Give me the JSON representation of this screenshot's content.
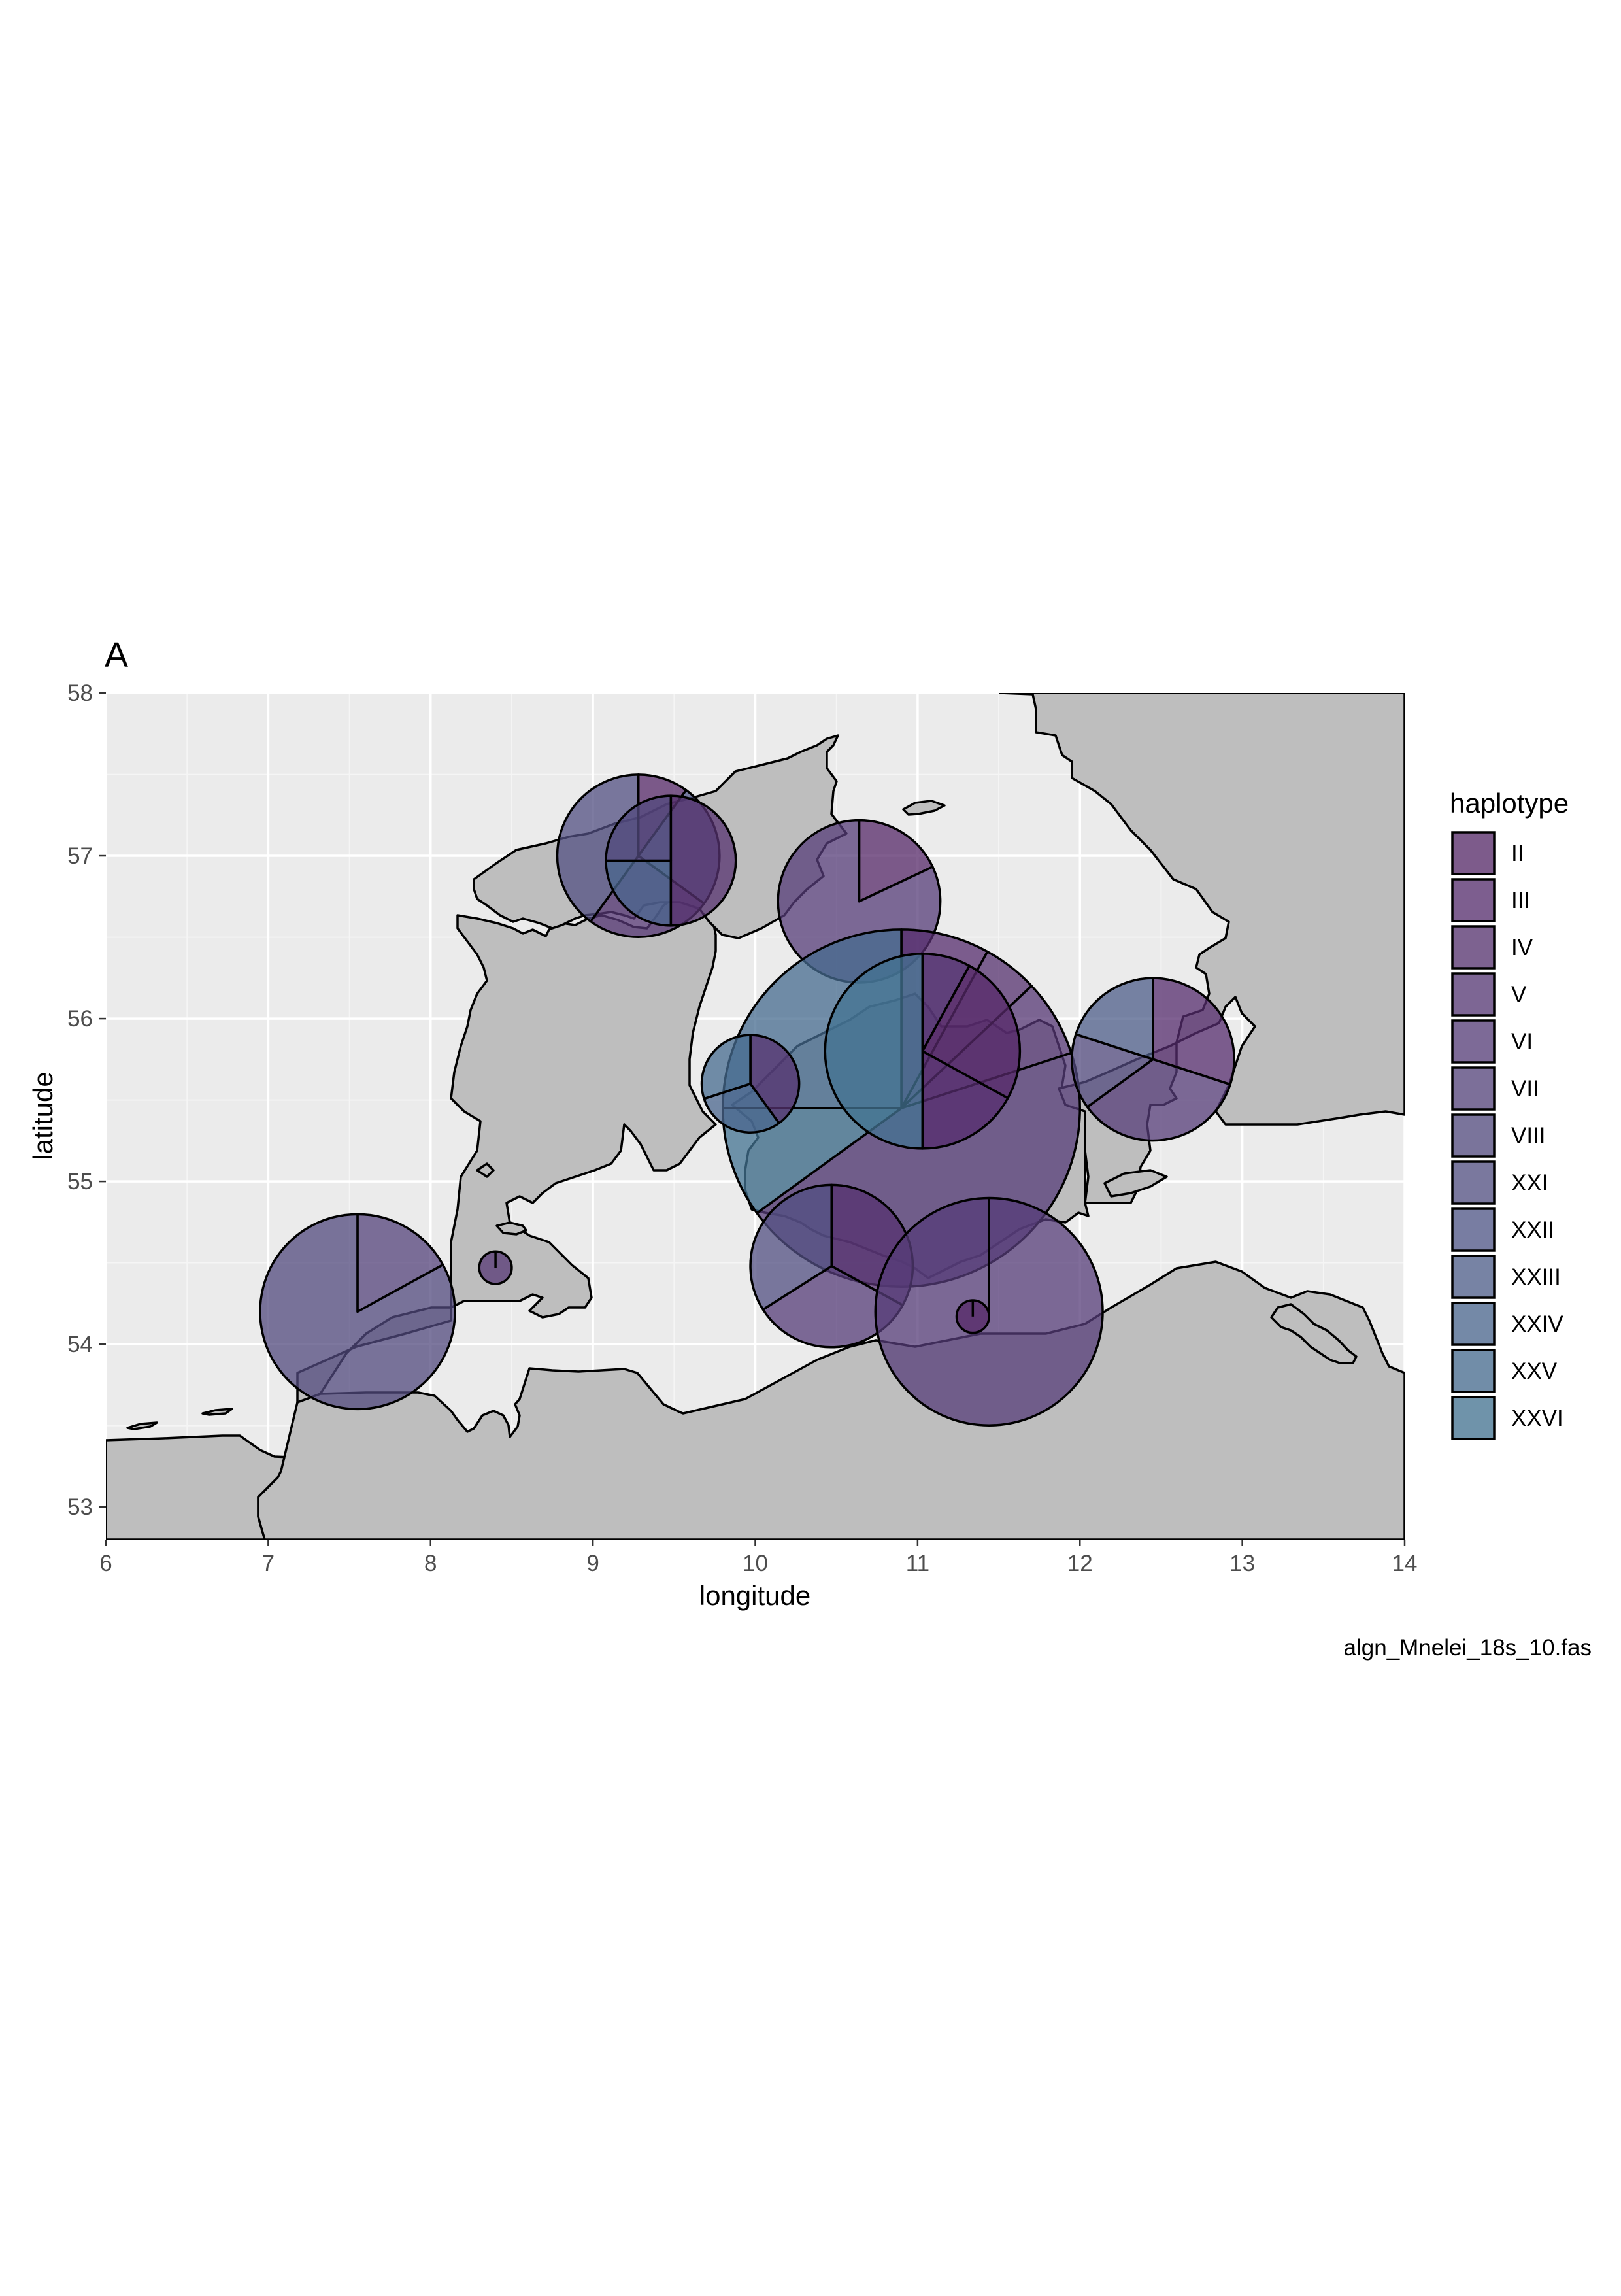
{
  "figure": {
    "panel_tag": "A",
    "caption": "algn_Mnelei_18s_10.fas"
  },
  "chart_data": {
    "type": "map-pie",
    "xlabel": "longitude",
    "ylabel": "latitude",
    "xlim": [
      6,
      14
    ],
    "ylim": [
      52.8,
      58
    ],
    "x_ticks": [
      "6",
      "7",
      "8",
      "9",
      "10",
      "11",
      "12",
      "13",
      "14"
    ],
    "y_ticks": [
      "53",
      "54",
      "55",
      "56",
      "57",
      "58"
    ],
    "grid": true,
    "background": "#ebebeb",
    "land_color": "#bebebe",
    "legend": {
      "title": "haplotype",
      "placement": "right",
      "items": [
        {
          "label": "II",
          "color": "#562868"
        },
        {
          "label": "III",
          "color": "#552c6d"
        },
        {
          "label": "IV",
          "color": "#55316f"
        },
        {
          "label": "V",
          "color": "#553774"
        },
        {
          "label": "VI",
          "color": "#553c78"
        },
        {
          "label": "VII",
          "color": "#54437b"
        },
        {
          "label": "VIII",
          "color": "#52497e"
        },
        {
          "label": "XXI",
          "color": "#514f82"
        },
        {
          "label": "XXII",
          "color": "#4f5687"
        },
        {
          "label": "XXIII",
          "color": "#4d5d89"
        },
        {
          "label": "XXIV",
          "color": "#49658d"
        },
        {
          "label": "XXV",
          "color": "#466b8f"
        },
        {
          "label": "XXVI",
          "color": "#437392"
        }
      ]
    },
    "pies": [
      {
        "lon": 9.28,
        "lat": 57.0,
        "r_deg": 0.5,
        "slices": [
          {
            "haplotype": "II",
            "share": 0.1
          },
          {
            "haplotype": "XXII",
            "share": 0.25
          },
          {
            "haplotype": "V",
            "share": 0.25
          },
          {
            "haplotype": "XXI",
            "share": 0.4
          }
        ]
      },
      {
        "lon": 9.48,
        "lat": 56.97,
        "r_deg": 0.4,
        "slices": [
          {
            "haplotype": "IV",
            "share": 0.5
          },
          {
            "haplotype": "XXIV",
            "share": 0.25
          },
          {
            "haplotype": "VIII",
            "share": 0.25
          }
        ]
      },
      {
        "lon": 10.64,
        "lat": 56.72,
        "r_deg": 0.5,
        "slices": [
          {
            "haplotype": "II",
            "share": 0.18
          },
          {
            "haplotype": "VI",
            "share": 0.82
          }
        ]
      },
      {
        "lon": 10.9,
        "lat": 55.45,
        "r_deg": 1.1,
        "slices": [
          {
            "haplotype": "III",
            "share": 0.08
          },
          {
            "haplotype": "IV",
            "share": 0.05
          },
          {
            "haplotype": "V",
            "share": 0.07
          },
          {
            "haplotype": "VI",
            "share": 0.45
          },
          {
            "haplotype": "XXVI",
            "share": 0.1
          },
          {
            "haplotype": "XXV",
            "share": 0.25
          }
        ]
      },
      {
        "lon": 11.03,
        "lat": 55.8,
        "r_deg": 0.6,
        "slices": [
          {
            "haplotype": "V",
            "share": 0.08
          },
          {
            "haplotype": "II",
            "share": 0.25
          },
          {
            "haplotype": "III",
            "share": 0.17
          },
          {
            "haplotype": "XXVI",
            "share": 0.5
          }
        ]
      },
      {
        "lon": 9.97,
        "lat": 55.6,
        "r_deg": 0.3,
        "slices": [
          {
            "haplotype": "IV",
            "share": 0.4
          },
          {
            "haplotype": "XXIV",
            "share": 0.3
          },
          {
            "haplotype": "XXV",
            "share": 0.3
          }
        ]
      },
      {
        "lon": 12.45,
        "lat": 55.75,
        "r_deg": 0.5,
        "slices": [
          {
            "haplotype": "III",
            "share": 0.3
          },
          {
            "haplotype": "VI",
            "share": 0.35
          },
          {
            "haplotype": "VIII",
            "share": 0.15
          },
          {
            "haplotype": "XXIII",
            "share": 0.2
          }
        ]
      },
      {
        "lon": 10.47,
        "lat": 54.48,
        "r_deg": 0.5,
        "slices": [
          {
            "haplotype": "IV",
            "share": 0.33
          },
          {
            "haplotype": "VI",
            "share": 0.33
          },
          {
            "haplotype": "XXI",
            "share": 0.34
          }
        ]
      },
      {
        "lon": 11.44,
        "lat": 54.2,
        "r_deg": 0.7,
        "slices": [
          {
            "haplotype": "VI",
            "share": 1.0
          }
        ]
      },
      {
        "lon": 11.34,
        "lat": 54.17,
        "r_deg": 0.1,
        "slices": [
          {
            "haplotype": "II",
            "share": 1.0
          }
        ]
      },
      {
        "lon": 7.55,
        "lat": 54.2,
        "r_deg": 0.6,
        "slices": [
          {
            "haplotype": "VII",
            "share": 0.17
          },
          {
            "haplotype": "VIII",
            "share": 0.83
          }
        ]
      },
      {
        "lon": 8.4,
        "lat": 54.47,
        "r_deg": 0.1,
        "slices": [
          {
            "haplotype": "V",
            "share": 1.0
          }
        ]
      }
    ]
  }
}
